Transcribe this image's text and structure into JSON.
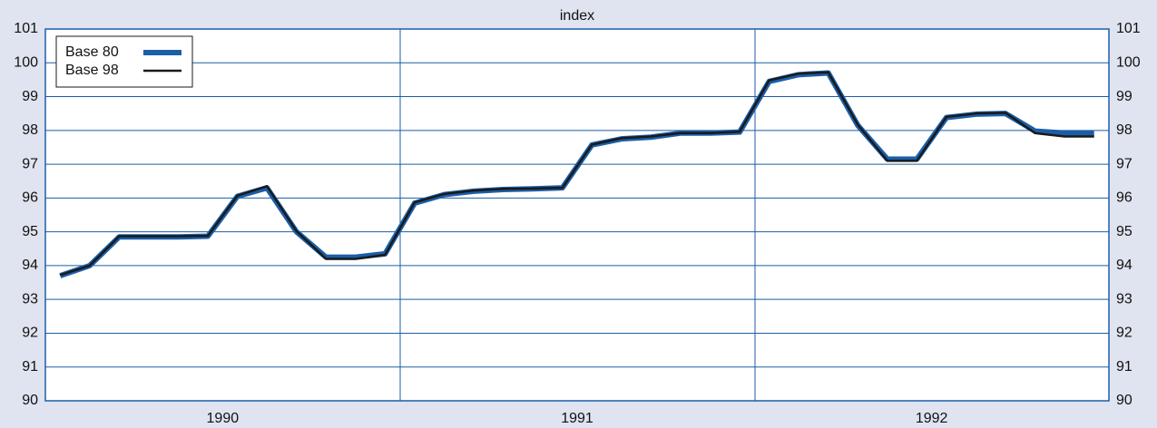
{
  "chart_data": {
    "type": "line",
    "y_label": "index",
    "categories": [
      null,
      null,
      null,
      null,
      null,
      "1990",
      null,
      null,
      null,
      null,
      null,
      null,
      null,
      null,
      null,
      null,
      null,
      "1991",
      null,
      null,
      null,
      null,
      null,
      null,
      null,
      null,
      null,
      null,
      null,
      "1992",
      null,
      null,
      null,
      null,
      null,
      null
    ],
    "series": [
      {
        "name": "Base 80",
        "color": "#1a5ea8",
        "width": 6,
        "values": [
          93.7,
          94.0,
          94.85,
          94.85,
          94.85,
          94.87,
          96.05,
          96.3,
          95.0,
          94.25,
          94.25,
          94.35,
          95.85,
          96.1,
          96.2,
          96.25,
          96.27,
          96.3,
          97.57,
          97.75,
          97.8,
          97.92,
          97.92,
          97.95,
          99.45,
          99.65,
          99.7,
          98.15,
          97.15,
          97.15,
          98.38,
          98.48,
          98.5,
          97.98,
          97.92,
          97.92
        ]
      },
      {
        "name": "Base 98",
        "color": "#1a1a1a",
        "width": 2.5,
        "values": [
          93.72,
          94.0,
          94.87,
          94.87,
          94.87,
          94.88,
          96.07,
          96.35,
          95.02,
          94.2,
          94.2,
          94.32,
          95.87,
          96.12,
          96.22,
          96.27,
          96.28,
          96.3,
          97.58,
          97.77,
          97.82,
          97.92,
          97.92,
          97.96,
          99.48,
          99.68,
          99.72,
          98.17,
          97.1,
          97.1,
          98.4,
          98.5,
          98.52,
          97.92,
          97.82,
          97.82
        ]
      }
    ],
    "ylim": [
      90,
      101
    ],
    "yticks": [
      90,
      91,
      92,
      93,
      94,
      95,
      96,
      97,
      98,
      99,
      100,
      101
    ],
    "grid": true,
    "legend": "upper-left"
  }
}
